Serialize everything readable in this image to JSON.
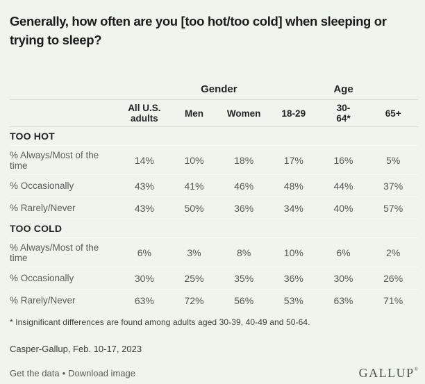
{
  "title": "Generally, how often are you [too hot/too cold] when sleeping or trying to sleep?",
  "colors": {
    "background": "#eff4ec",
    "heading_text": "#1c1c1c",
    "body_gray": "#5c5c5c",
    "header_line": "#d6dbd3",
    "row_line": "#f8fbf4",
    "logo": "#4b534c"
  },
  "table": {
    "group_headers": {
      "gender": "Gender",
      "age": "Age"
    },
    "columns": [
      "All U.S. adults",
      "Men",
      "Women",
      "18-29",
      "30-64*",
      "65+"
    ],
    "sections": [
      {
        "name": "TOO HOT",
        "rows": [
          {
            "label": "% Always/Most of the time",
            "values": [
              "14%",
              "10%",
              "18%",
              "17%",
              "16%",
              "5%"
            ]
          },
          {
            "label": "% Occasionally",
            "values": [
              "43%",
              "41%",
              "46%",
              "48%",
              "44%",
              "37%"
            ]
          },
          {
            "label": "% Rarely/Never",
            "values": [
              "43%",
              "50%",
              "36%",
              "34%",
              "40%",
              "57%"
            ]
          }
        ]
      },
      {
        "name": "TOO COLD",
        "rows": [
          {
            "label": "% Always/Most of the time",
            "values": [
              "6%",
              "3%",
              "8%",
              "10%",
              "6%",
              "2%"
            ]
          },
          {
            "label": "% Occasionally",
            "values": [
              "30%",
              "25%",
              "35%",
              "36%",
              "30%",
              "26%"
            ]
          },
          {
            "label": "% Rarely/Never",
            "values": [
              "63%",
              "72%",
              "56%",
              "53%",
              "63%",
              "71%"
            ]
          }
        ]
      }
    ]
  },
  "footnote": "* Insignificant differences are found among adults aged 30-39, 40-49 and 50-64.",
  "source": "Casper-Gallup, Feb. 10-17, 2023",
  "links": {
    "get_data": "Get the data",
    "separator": "•",
    "download": "Download image"
  },
  "logo": {
    "text": "GALLUP",
    "mark": "®"
  },
  "chart_data": {
    "type": "table",
    "title": "Generally, how often are you [too hot/too cold] when sleeping or trying to sleep?",
    "column_groups": [
      {
        "label": "",
        "columns": [
          "All U.S. adults"
        ]
      },
      {
        "label": "Gender",
        "columns": [
          "Men",
          "Women"
        ]
      },
      {
        "label": "Age",
        "columns": [
          "18-29",
          "30-64*",
          "65+"
        ]
      }
    ],
    "categories": [
      "All U.S. adults",
      "Men",
      "Women",
      "18-29",
      "30-64*",
      "65+"
    ],
    "sections": [
      {
        "name": "TOO HOT",
        "series": [
          {
            "name": "% Always/Most of the time",
            "values": [
              14,
              10,
              18,
              17,
              16,
              5
            ]
          },
          {
            "name": "% Occasionally",
            "values": [
              43,
              41,
              46,
              48,
              44,
              37
            ]
          },
          {
            "name": "% Rarely/Never",
            "values": [
              43,
              50,
              36,
              34,
              40,
              57
            ]
          }
        ]
      },
      {
        "name": "TOO COLD",
        "series": [
          {
            "name": "% Always/Most of the time",
            "values": [
              6,
              3,
              8,
              10,
              6,
              2
            ]
          },
          {
            "name": "% Occasionally",
            "values": [
              30,
              25,
              35,
              36,
              30,
              26
            ]
          },
          {
            "name": "% Rarely/Never",
            "values": [
              63,
              72,
              56,
              53,
              63,
              71
            ]
          }
        ]
      }
    ],
    "units": "percent",
    "footnote": "* Insignificant differences are found among adults aged 30-39, 40-49 and 50-64.",
    "source": "Casper-Gallup, Feb. 10-17, 2023"
  }
}
